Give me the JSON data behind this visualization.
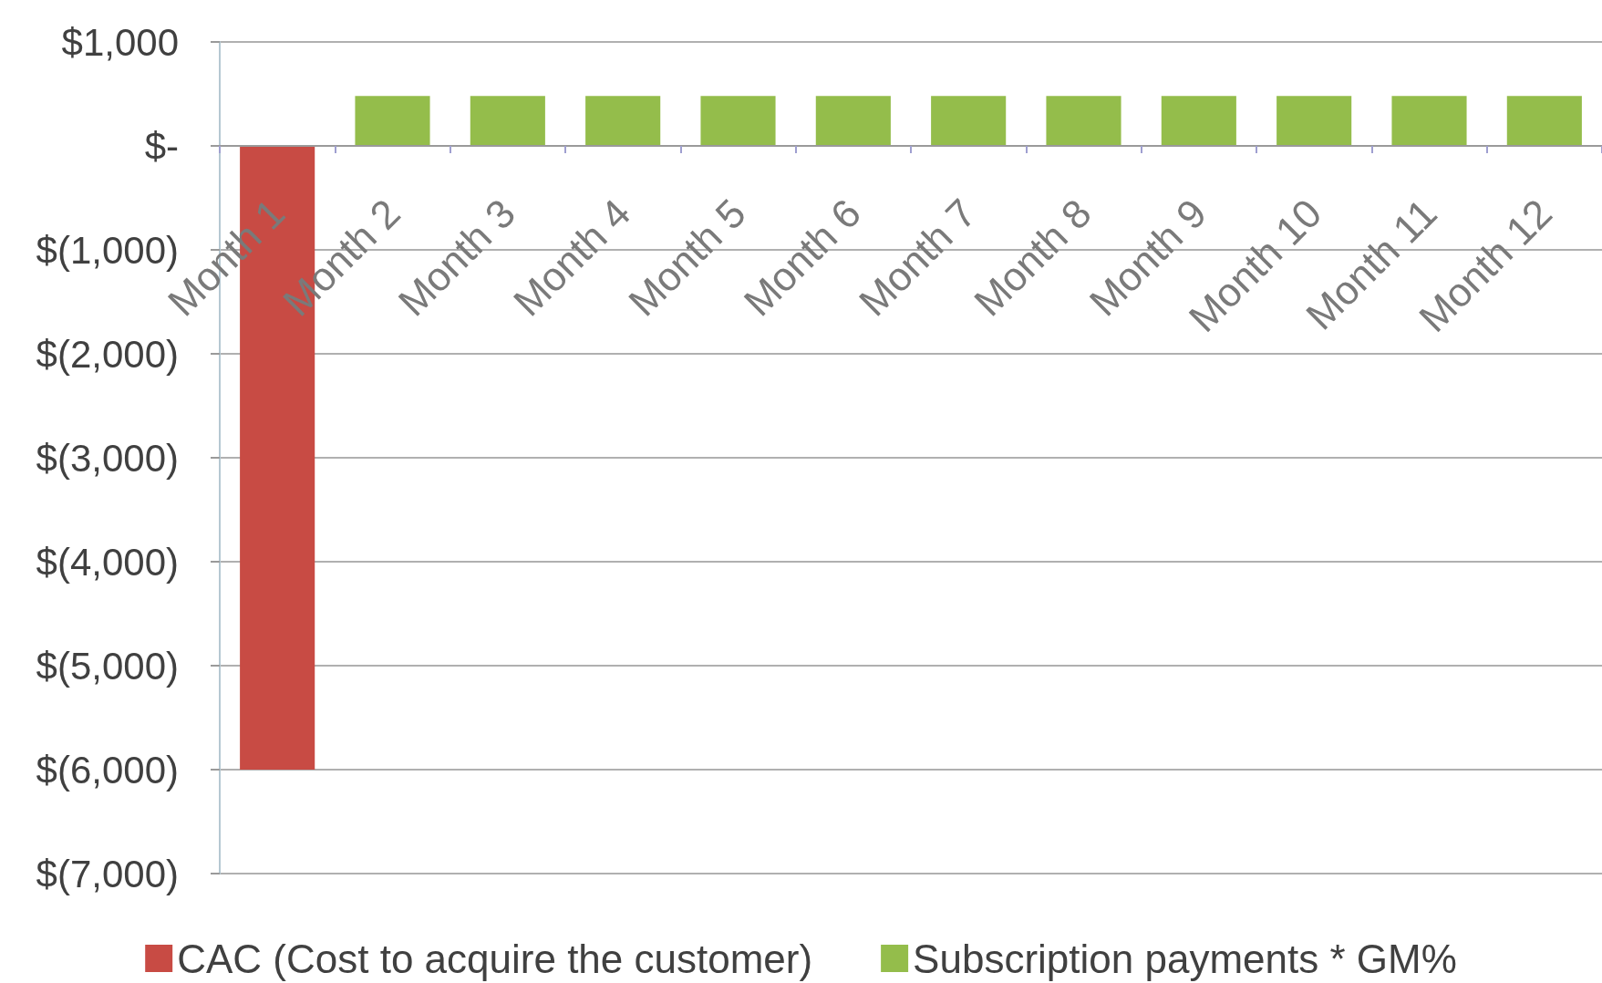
{
  "chart_data": {
    "type": "bar",
    "categories": [
      "Month 1",
      "Month 2",
      "Month 3",
      "Month 4",
      "Month 5",
      "Month 6",
      "Month 7",
      "Month 8",
      "Month 9",
      "Month 10",
      "Month 11",
      "Month 12"
    ],
    "series": [
      {
        "name": "CAC (Cost to acquire the customer)",
        "color": "#c84b44",
        "values": [
          -6000,
          null,
          null,
          null,
          null,
          null,
          null,
          null,
          null,
          null,
          null,
          null
        ]
      },
      {
        "name": "Subscription payments * GM%",
        "color": "#94bd4b",
        "values": [
          null,
          480,
          480,
          480,
          480,
          480,
          480,
          480,
          480,
          480,
          480,
          480
        ]
      }
    ],
    "stacked": true,
    "ylim": [
      -7000,
      1000
    ],
    "yticks": [
      {
        "value": 1000,
        "label": "$1,000"
      },
      {
        "value": 0,
        "label": "$-"
      },
      {
        "value": -1000,
        "label": "$(1,000)"
      },
      {
        "value": -2000,
        "label": "$(2,000)"
      },
      {
        "value": -3000,
        "label": "$(3,000)"
      },
      {
        "value": -4000,
        "label": "$(4,000)"
      },
      {
        "value": -5000,
        "label": "$(5,000)"
      },
      {
        "value": -6000,
        "label": "$(6,000)"
      },
      {
        "value": -7000,
        "label": "$(7,000)"
      }
    ],
    "grid": "y",
    "legend": "bottom"
  }
}
